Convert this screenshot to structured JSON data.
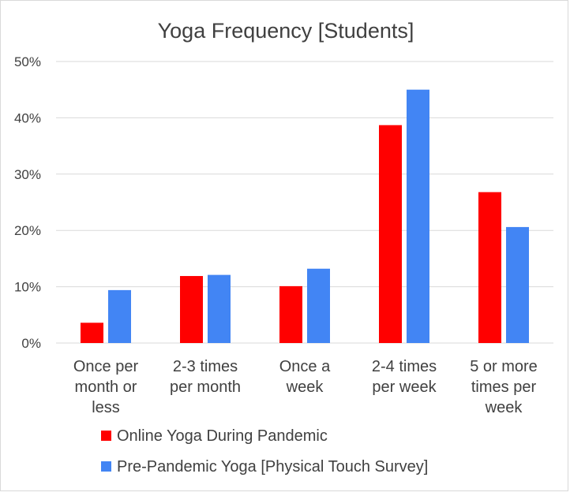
{
  "chart_data": {
    "type": "bar",
    "title": "Yoga Frequency [Students]",
    "xlabel": "",
    "ylabel": "",
    "ylim": [
      0,
      50
    ],
    "yticks": [
      "0%",
      "10%",
      "20%",
      "30%",
      "40%",
      "50%"
    ],
    "grid": true,
    "legend_position": "bottom",
    "categories": [
      [
        "Once per",
        "month or",
        "less"
      ],
      [
        "2-3 times",
        "per month"
      ],
      [
        "Once a",
        "week"
      ],
      [
        "2-4 times",
        "per week"
      ],
      [
        "5 or more",
        "times per",
        "week"
      ]
    ],
    "series": [
      {
        "name": "Online Yoga During Pandemic",
        "color": "#ff0000",
        "values": [
          3.6,
          11.9,
          10.1,
          38.7,
          26.8
        ]
      },
      {
        "name": "Pre-Pandemic Yoga [Physical Touch Survey]",
        "color": "#4285f4",
        "values": [
          9.4,
          12.1,
          13.2,
          45.0,
          20.6
        ]
      }
    ]
  }
}
